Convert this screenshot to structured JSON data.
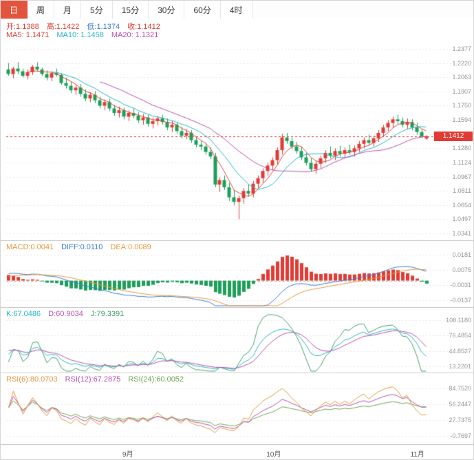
{
  "colors": {
    "up": "#e23b34",
    "down": "#1ca05a",
    "ma5": "#e0433c",
    "ma10": "#26b6c4",
    "ma20": "#b84fb0",
    "diff": "#3a7bd5",
    "dea": "#e8973a",
    "k": "#26b6c4",
    "d": "#b84fb0",
    "j": "#3fa06a",
    "rsi6": "#e8973a",
    "rsi12": "#b84fb0",
    "rsi24": "#6aa84f",
    "selected_tab": "#e2543b",
    "price_line": "#e23b34",
    "grid": "#e9e9e9",
    "tick_text": "#999999"
  },
  "tabs": {
    "items": [
      {
        "label": "日",
        "selected": true
      },
      {
        "label": "周",
        "selected": false
      },
      {
        "label": "月",
        "selected": false
      },
      {
        "label": "5分",
        "selected": false
      },
      {
        "label": "15分",
        "selected": false
      },
      {
        "label": "30分",
        "selected": false
      },
      {
        "label": "60分",
        "selected": false
      },
      {
        "label": "4时",
        "selected": false
      }
    ]
  },
  "main": {
    "open_label": "开:1.1388",
    "high_label": "高:1.1422",
    "low_label": "低:1.1374",
    "close_label": "收:1.1412",
    "ma5_label": "MA5: 1.1471",
    "ma10_label": "MA10: 1.1458",
    "ma20_label": "MA20: 1.1321",
    "price_badge": "1.1412"
  },
  "macd": {
    "macd_label": "MACD:0.0041",
    "diff_label": "DIFF:0.0110",
    "dea_label": "DEA:0.0089"
  },
  "kdj": {
    "k_label": "K:67.0486",
    "d_label": "D:60.9034",
    "j_label": "J:79.3391"
  },
  "rsi": {
    "rsi6_label": "RSI(6):80.0703",
    "rsi12_label": "RSI(12):67.2875",
    "rsi24_label": "RSI(24):60.0052"
  },
  "chart_data": {
    "type": "candlestick",
    "current_price": 1.1412,
    "ohlc": {
      "open": 1.1388,
      "high": 1.1422,
      "low": 1.1374,
      "close": 1.1412
    },
    "ma_values": {
      "ma5": 1.1471,
      "ma10": 1.1458,
      "ma20": 1.1321
    },
    "macd_values": {
      "macd": 0.0041,
      "diff": 0.011,
      "dea": 0.0089
    },
    "kdj_values": {
      "k": 67.0486,
      "d": 60.9034,
      "j": 79.3391
    },
    "rsi_values": {
      "rsi6": 80.0703,
      "rsi12": 67.2875,
      "rsi24": 60.0052
    },
    "x_month_ticks": [
      {
        "index": 25,
        "label": "9月"
      },
      {
        "index": 55,
        "label": "10月"
      },
      {
        "index": 85,
        "label": "11月"
      }
    ],
    "main_axis": {
      "values": [
        1.2377,
        1.222,
        1.2063,
        1.1907,
        1.175,
        1.1594,
        1.1437,
        1.128,
        1.1124,
        1.0967,
        1.0811,
        1.0654,
        1.0497,
        1.0341
      ],
      "labels": [
        "1.2377",
        "1.2220",
        "1.2063",
        "1.1907",
        "1.1750",
        "1.1594",
        "",
        "1.1280",
        "1.1124",
        "1.0967",
        "1.0811",
        "1.0654",
        "1.0497",
        "1.0341"
      ]
    },
    "macd_axis": {
      "values": [
        0.0181,
        0.0075,
        -0.0031,
        -0.0137
      ],
      "labels": [
        "0.0181",
        "0.0075",
        "-0.0031",
        "-0.0137"
      ]
    },
    "kdj_axis": {
      "values": [
        108.118,
        76.4854,
        44.8527,
        13.2201
      ],
      "labels": [
        "108.1180",
        "76.4854",
        "44.8527",
        "13.2201"
      ]
    },
    "rsi_axis": {
      "values": [
        84.752,
        56.2447,
        27.7375,
        -0.7697
      ],
      "labels": [
        "84.7520",
        "56.2447",
        "27.7375",
        "-0.7697"
      ]
    },
    "candles": [
      [
        1.215,
        1.222,
        1.208,
        1.21
      ],
      [
        1.21,
        1.218,
        1.205,
        1.216
      ],
      [
        1.216,
        1.223,
        1.21,
        1.213
      ],
      [
        1.213,
        1.216,
        1.206,
        1.208
      ],
      [
        1.208,
        1.215,
        1.204,
        1.212
      ],
      [
        1.212,
        1.22,
        1.209,
        1.218
      ],
      [
        1.218,
        1.223,
        1.213,
        1.215
      ],
      [
        1.215,
        1.217,
        1.208,
        1.21
      ],
      [
        1.21,
        1.214,
        1.203,
        1.206
      ],
      [
        1.206,
        1.213,
        1.202,
        1.211
      ],
      [
        1.211,
        1.216,
        1.207,
        1.209
      ],
      [
        1.209,
        1.211,
        1.198,
        1.2
      ],
      [
        1.2,
        1.206,
        1.194,
        1.197
      ],
      [
        1.197,
        1.201,
        1.189,
        1.192
      ],
      [
        1.192,
        1.198,
        1.187,
        1.195
      ],
      [
        1.195,
        1.199,
        1.185,
        1.188
      ],
      [
        1.188,
        1.193,
        1.18,
        1.183
      ],
      [
        1.183,
        1.19,
        1.179,
        1.187
      ],
      [
        1.187,
        1.191,
        1.178,
        1.181
      ],
      [
        1.181,
        1.185,
        1.172,
        1.175
      ],
      [
        1.175,
        1.182,
        1.17,
        1.179
      ],
      [
        1.179,
        1.183,
        1.169,
        1.172
      ],
      [
        1.172,
        1.176,
        1.164,
        1.167
      ],
      [
        1.167,
        1.174,
        1.162,
        1.17
      ],
      [
        1.17,
        1.173,
        1.16,
        1.163
      ],
      [
        1.163,
        1.17,
        1.158,
        1.167
      ],
      [
        1.167,
        1.172,
        1.161,
        1.164
      ],
      [
        1.164,
        1.168,
        1.156,
        1.159
      ],
      [
        1.159,
        1.166,
        1.154,
        1.162
      ],
      [
        1.162,
        1.165,
        1.152,
        1.155
      ],
      [
        1.155,
        1.162,
        1.15,
        1.158
      ],
      [
        1.158,
        1.164,
        1.153,
        1.161
      ],
      [
        1.161,
        1.165,
        1.154,
        1.157
      ],
      [
        1.157,
        1.161,
        1.148,
        1.151
      ],
      [
        1.151,
        1.158,
        1.146,
        1.154
      ],
      [
        1.154,
        1.157,
        1.144,
        1.147
      ],
      [
        1.147,
        1.152,
        1.139,
        1.142
      ],
      [
        1.142,
        1.149,
        1.138,
        1.145
      ],
      [
        1.145,
        1.148,
        1.134,
        1.137
      ],
      [
        1.137,
        1.141,
        1.129,
        1.132
      ],
      [
        1.132,
        1.136,
        1.126,
        1.13
      ],
      [
        1.13,
        1.134,
        1.121,
        1.124
      ],
      [
        1.124,
        1.129,
        1.116,
        1.119
      ],
      [
        1.119,
        1.123,
        1.085,
        1.088
      ],
      [
        1.088,
        1.096,
        1.08,
        1.093
      ],
      [
        1.093,
        1.098,
        1.082,
        1.085
      ],
      [
        1.085,
        1.09,
        1.07,
        1.074
      ],
      [
        1.074,
        1.082,
        1.065,
        1.069
      ],
      [
        1.069,
        1.076,
        1.0497,
        1.073
      ],
      [
        1.073,
        1.084,
        1.067,
        1.081
      ],
      [
        1.081,
        1.088,
        1.075,
        1.078
      ],
      [
        1.078,
        1.092,
        1.074,
        1.089
      ],
      [
        1.089,
        1.098,
        1.084,
        1.095
      ],
      [
        1.095,
        1.106,
        1.09,
        1.103
      ],
      [
        1.103,
        1.112,
        1.098,
        1.109
      ],
      [
        1.109,
        1.118,
        1.104,
        1.115
      ],
      [
        1.115,
        1.129,
        1.11,
        1.126
      ],
      [
        1.126,
        1.144,
        1.121,
        1.14
      ],
      [
        1.14,
        1.145,
        1.133,
        1.136
      ],
      [
        1.136,
        1.14,
        1.127,
        1.13
      ],
      [
        1.13,
        1.135,
        1.122,
        1.125
      ],
      [
        1.125,
        1.13,
        1.115,
        1.118
      ],
      [
        1.118,
        1.123,
        1.109,
        1.112
      ],
      [
        1.112,
        1.117,
        1.102,
        1.105
      ],
      [
        1.105,
        1.114,
        1.1,
        1.111
      ],
      [
        1.111,
        1.12,
        1.106,
        1.117
      ],
      [
        1.117,
        1.126,
        1.112,
        1.123
      ],
      [
        1.123,
        1.13,
        1.117,
        1.12
      ],
      [
        1.12,
        1.128,
        1.115,
        1.125
      ],
      [
        1.125,
        1.131,
        1.119,
        1.122
      ],
      [
        1.122,
        1.129,
        1.117,
        1.126
      ],
      [
        1.126,
        1.132,
        1.121,
        1.124
      ],
      [
        1.124,
        1.131,
        1.119,
        1.128
      ],
      [
        1.128,
        1.136,
        1.124,
        1.133
      ],
      [
        1.133,
        1.14,
        1.128,
        1.137
      ],
      [
        1.137,
        1.143,
        1.131,
        1.134
      ],
      [
        1.134,
        1.142,
        1.13,
        1.139
      ],
      [
        1.139,
        1.148,
        1.135,
        1.145
      ],
      [
        1.145,
        1.154,
        1.141,
        1.151
      ],
      [
        1.151,
        1.159,
        1.147,
        1.156
      ],
      [
        1.156,
        1.163,
        1.151,
        1.16
      ],
      [
        1.16,
        1.165,
        1.155,
        1.158
      ],
      [
        1.158,
        1.162,
        1.151,
        1.154
      ],
      [
        1.154,
        1.161,
        1.149,
        1.157
      ],
      [
        1.157,
        1.16,
        1.148,
        1.151
      ],
      [
        1.151,
        1.156,
        1.143,
        1.146
      ],
      [
        1.146,
        1.149,
        1.139,
        1.141
      ],
      [
        1.1388,
        1.1422,
        1.1374,
        1.1412
      ]
    ]
  }
}
